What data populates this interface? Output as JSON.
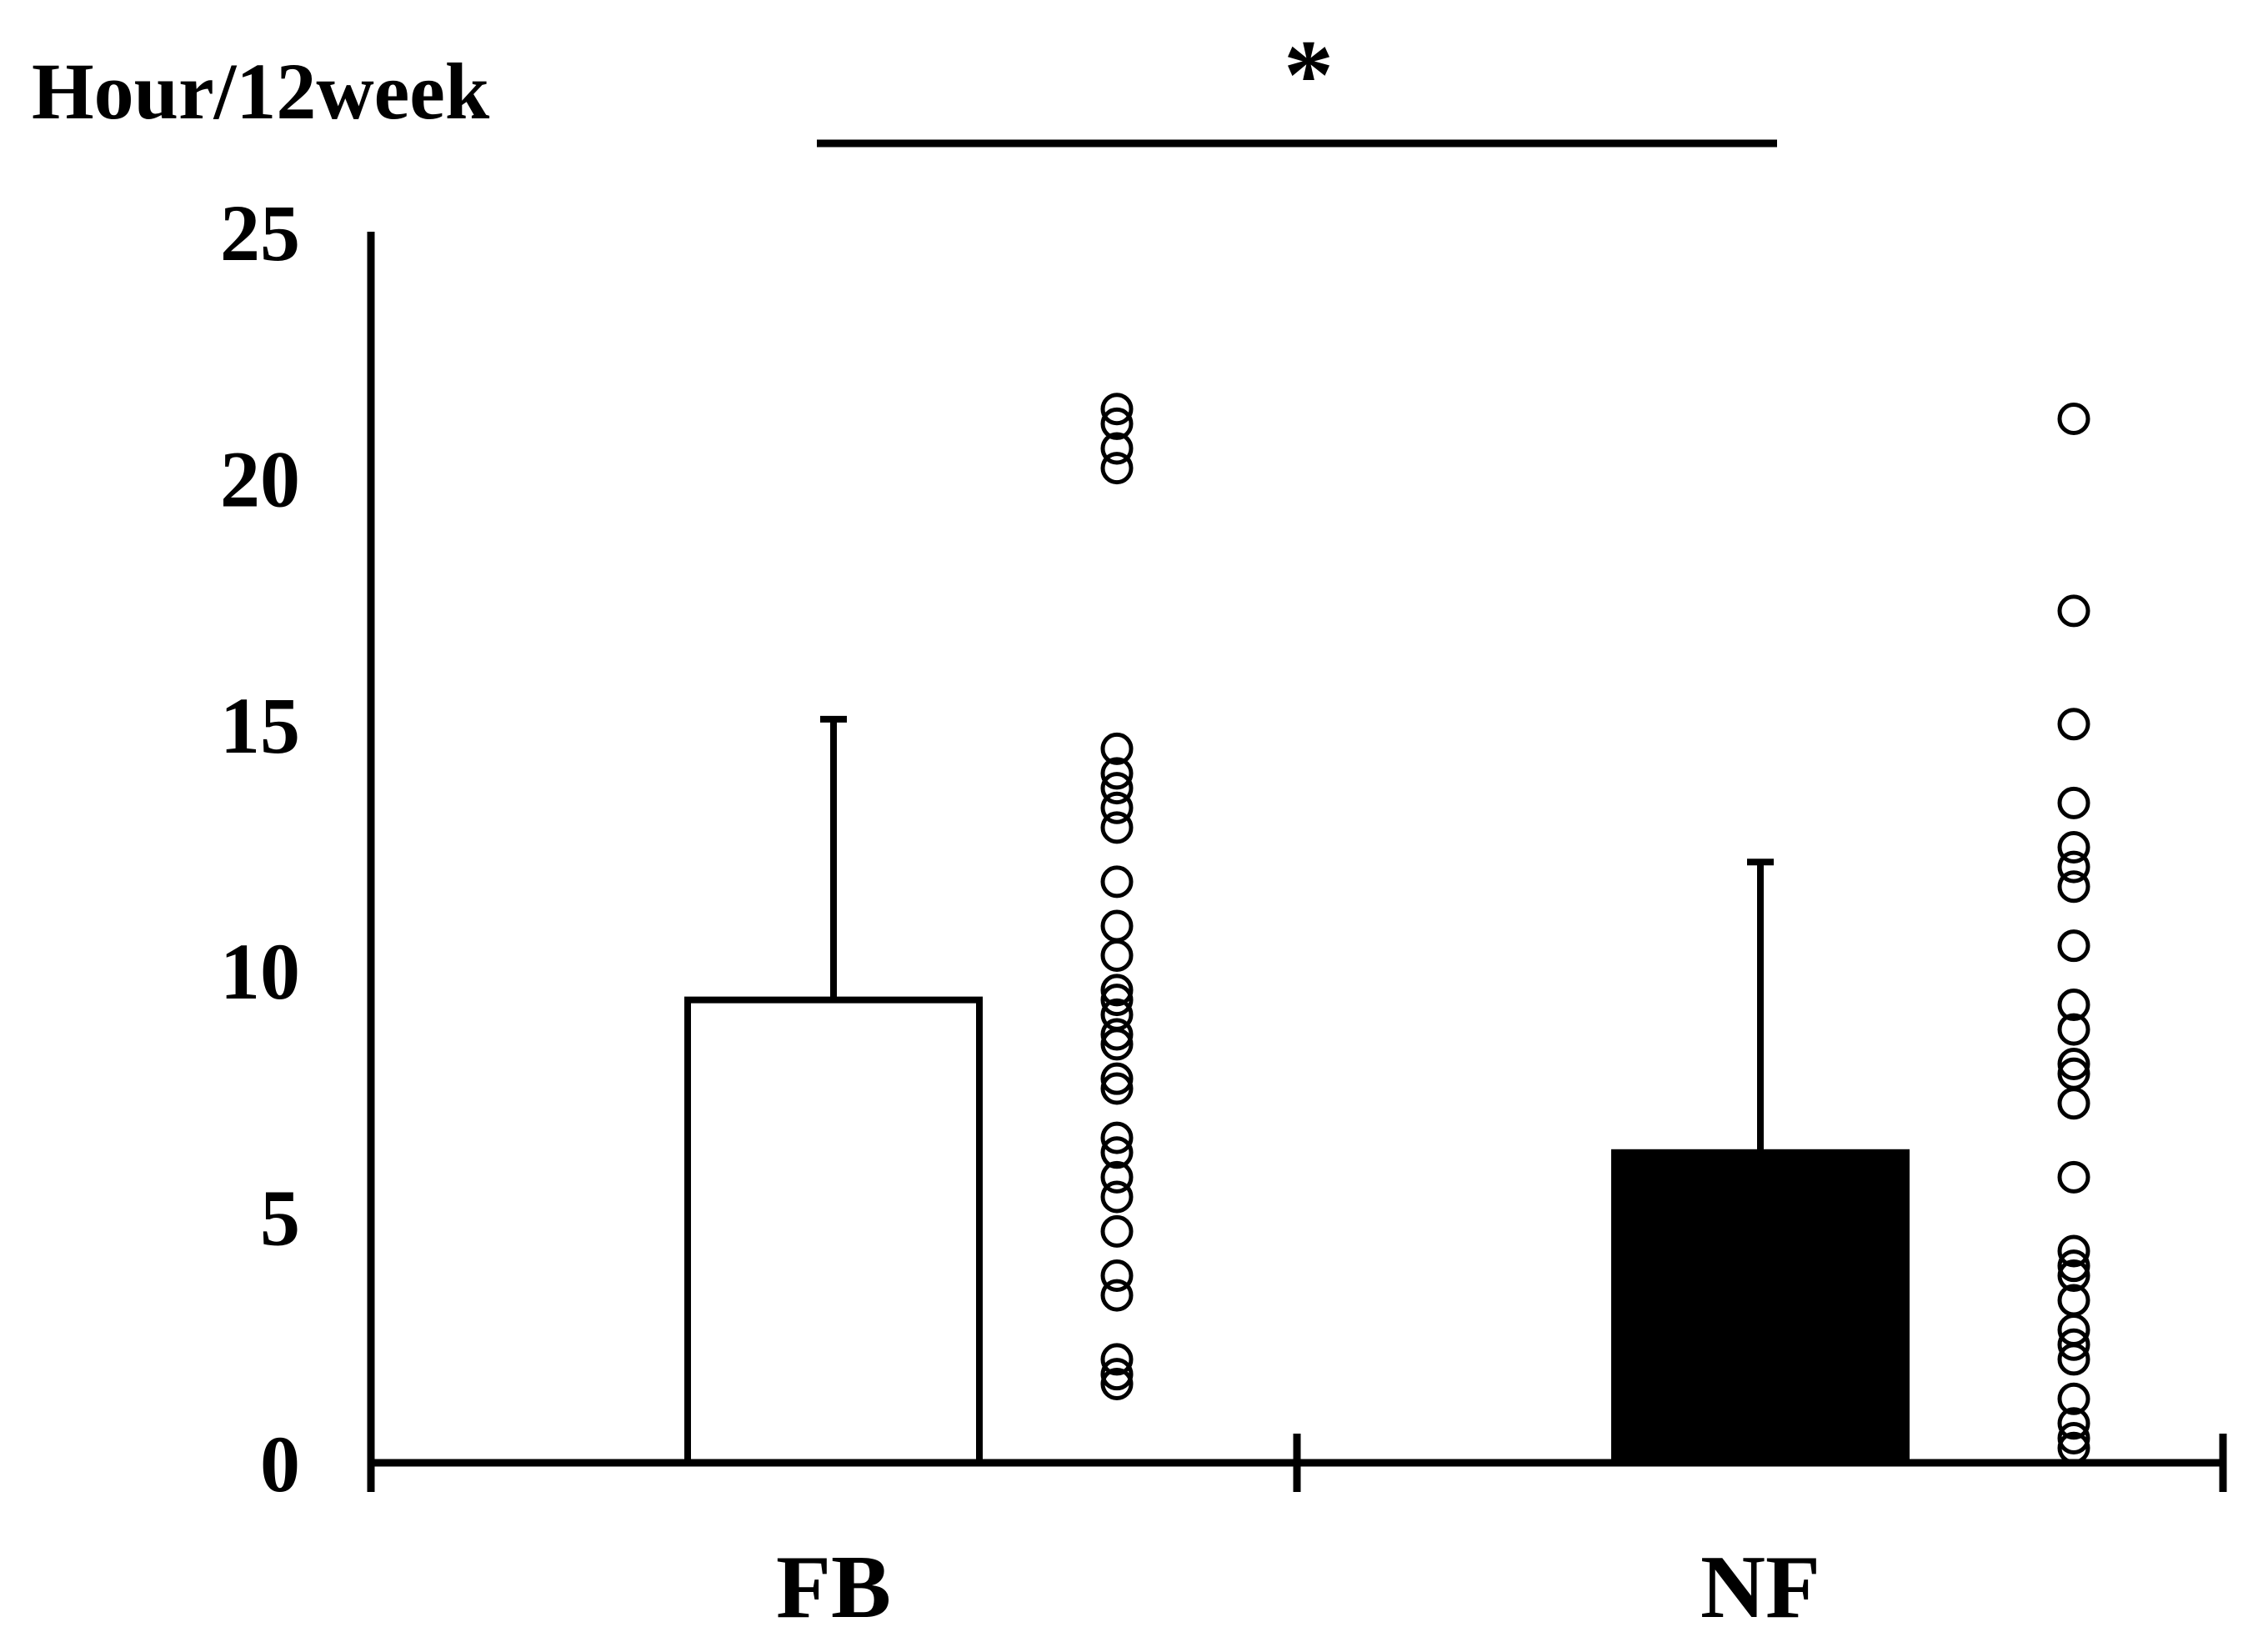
{
  "chart_data": {
    "type": "bar",
    "ylabel": "Hour/12week",
    "categories": [
      "FB",
      "NF"
    ],
    "values": [
      9.4,
      6.3
    ],
    "errors": [
      5.7,
      5.9
    ],
    "bar_colors": [
      "#ffffff",
      "#000000"
    ],
    "ylim": [
      0,
      25
    ],
    "yticks": [
      "0",
      "5",
      "10",
      "15",
      "20",
      "25"
    ],
    "grid": false,
    "legend": "none",
    "significance": {
      "marker": "*",
      "between": [
        "FB",
        "NF"
      ]
    },
    "points": {
      "FB": [
        21.4,
        21.1,
        20.6,
        20.2,
        14.5,
        14.0,
        13.7,
        13.3,
        12.9,
        11.8,
        10.9,
        10.3,
        9.6,
        9.4,
        9.1,
        8.7,
        8.5,
        7.8,
        7.6,
        6.6,
        6.3,
        5.8,
        5.4,
        4.7,
        3.8,
        3.4,
        2.1,
        1.8,
        1.6
      ],
      "NF": [
        21.2,
        17.3,
        15.0,
        13.4,
        12.5,
        12.1,
        11.7,
        10.5,
        9.3,
        8.8,
        8.1,
        7.9,
        7.3,
        5.8,
        4.3,
        4.0,
        3.8,
        3.3,
        2.7,
        2.4,
        2.1,
        1.3,
        0.8,
        0.5,
        0.3
      ]
    },
    "point_marker": "open-circle",
    "colors": {
      "axis": "#000000",
      "fb_bar": "#ffffff",
      "nf_bar": "#000000",
      "points": "#000000"
    }
  }
}
